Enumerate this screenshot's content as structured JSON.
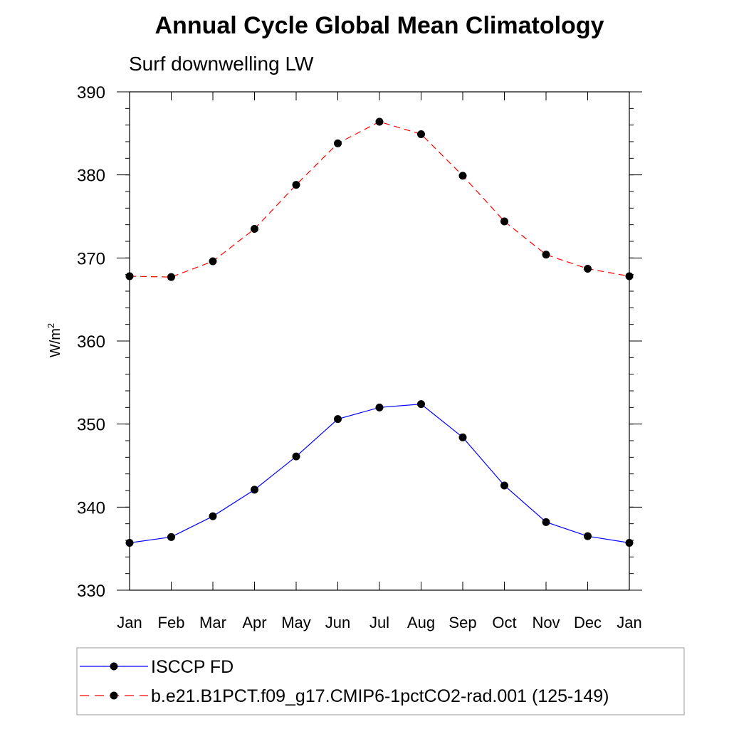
{
  "chart_data": {
    "type": "line",
    "title": "Annual Cycle Global Mean Climatology",
    "subtitle": "Surf downwelling LW",
    "ylabel": "W/m",
    "ylabel_sup": "2",
    "xlabel": "",
    "categories": [
      "Jan",
      "Feb",
      "Mar",
      "Apr",
      "May",
      "Jun",
      "Jul",
      "Aug",
      "Sep",
      "Oct",
      "Nov",
      "Dec",
      "Jan"
    ],
    "ylim": [
      330,
      390
    ],
    "yticks": [
      330,
      340,
      350,
      360,
      370,
      380,
      390
    ],
    "ytick_labels": [
      "330",
      "340",
      "350",
      "360",
      "370",
      "380",
      "390"
    ],
    "grid": false,
    "legend_position": "bottom",
    "series": [
      {
        "name": "ISCCP FD",
        "color": "#0000ff",
        "dash": "solid",
        "marker": "circle",
        "values": [
          335.7,
          336.4,
          338.9,
          342.1,
          346.1,
          350.6,
          352.0,
          352.4,
          348.4,
          342.6,
          338.2,
          336.5,
          335.7
        ]
      },
      {
        "name": "b.e21.B1PCT.f09_g17.CMIP6-1pctCO2-rad.001 (125-149)",
        "color": "#ff0000",
        "dash": "dashed",
        "marker": "circle",
        "values": [
          367.8,
          367.7,
          369.6,
          373.5,
          378.8,
          383.8,
          386.4,
          384.9,
          379.9,
          374.4,
          370.4,
          368.7,
          367.8
        ]
      }
    ]
  }
}
